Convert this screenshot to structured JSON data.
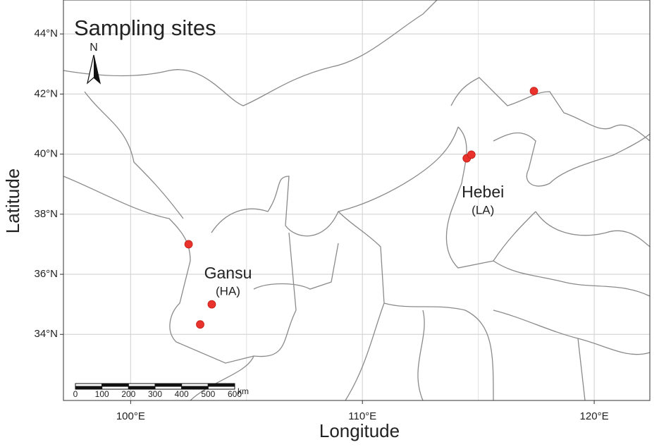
{
  "map": {
    "title": "Sampling sites",
    "north_label": "N",
    "x_label": "Longitude",
    "y_label": "Latitude",
    "xlim": [
      97.1,
      122.4
    ],
    "ylim": [
      31.8,
      45.13
    ],
    "xticks": [
      {
        "value": 100,
        "label": "100°E"
      },
      {
        "value": 110,
        "label": "110°E"
      },
      {
        "value": 120,
        "label": "120°E"
      }
    ],
    "minor_xticks": [
      105,
      115
    ],
    "yticks": [
      {
        "value": 34,
        "label": "34°N"
      },
      {
        "value": 36,
        "label": "36°N"
      },
      {
        "value": 38,
        "label": "38°N"
      },
      {
        "value": 40,
        "label": "40°N"
      },
      {
        "value": 42,
        "label": "42°N"
      },
      {
        "value": 44,
        "label": "44°N"
      }
    ],
    "grid": true,
    "regions": [
      {
        "name": "Gansu",
        "group": "(HA)",
        "lon": 104.2,
        "lat": 36.0
      },
      {
        "name": "Hebei",
        "group": "(LA)",
        "lon": 115.2,
        "lat": 38.7
      }
    ],
    "points": {
      "color": "#e8322b",
      "lon": [
        102.5,
        103.5,
        103.0,
        114.5,
        114.7,
        117.4
      ],
      "lat": [
        37.0,
        35.0,
        34.33,
        39.86,
        39.98,
        42.1
      ]
    },
    "scale_bar": {
      "ticks": [
        0,
        100,
        200,
        300,
        400,
        500,
        600
      ],
      "unit": "km"
    }
  }
}
